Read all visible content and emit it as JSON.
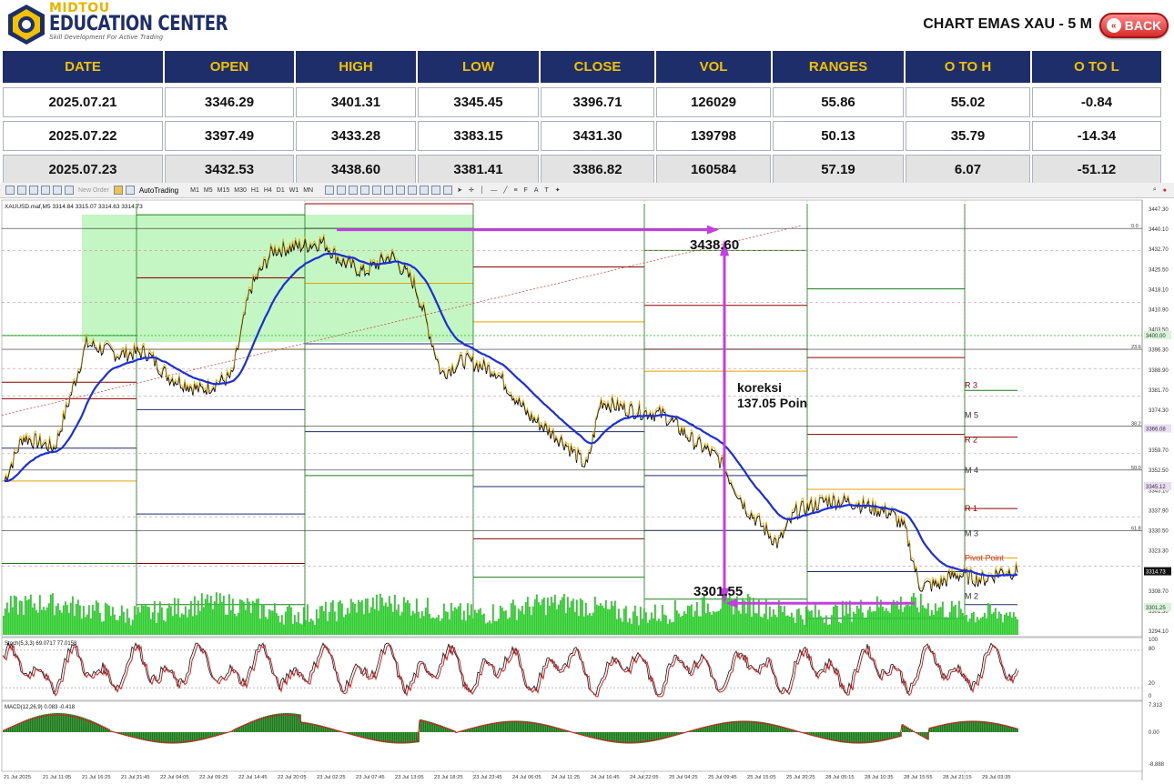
{
  "header": {
    "brand_top": "MIDTOU",
    "brand_main": "EDUCATION CENTER",
    "brand_tag": "Skill Development For Active Trading",
    "title": "CHART EMAS XAU - 5 M",
    "back_label": "BACK"
  },
  "table": {
    "columns": [
      "DATE",
      "OPEN",
      "HIGH",
      "LOW",
      "CLOSE",
      "VOL",
      "RANGES",
      "O TO H",
      "O TO L"
    ],
    "rows": [
      [
        "2025.07.21",
        "3346.29",
        "3401.31",
        "3345.45",
        "3396.71",
        "126029",
        "55.86",
        "55.02",
        "-0.84"
      ],
      [
        "2025.07.22",
        "3397.49",
        "3433.28",
        "3383.15",
        "3431.30",
        "139798",
        "50.13",
        "35.79",
        "-14.34"
      ],
      [
        "2025.07.23",
        "3432.53",
        "3438.60",
        "3381.41",
        "3386.82",
        "160584",
        "57.19",
        "6.07",
        "-51.12"
      ]
    ]
  },
  "toolbar": {
    "new_order": "New Order",
    "autotrading": "AutoTrading",
    "timeframes": [
      "M1",
      "M5",
      "M15",
      "M30",
      "H1",
      "H4",
      "D1",
      "W1",
      "MN"
    ]
  },
  "chart": {
    "symbol_info": "XAUUSD.maf,M5  3314.84 3315.07 3314.63 3314.73",
    "stoch_label": "Stoch(5,3,3) 69.0717 77.0158",
    "macd_label": "MACD(12,26,9) 0.083 -0.418",
    "annotation_high": "3438.60",
    "annotation_low": "3301.55",
    "annotation_text_1": "koreksi",
    "annotation_text_2": "137.05 Poin",
    "pivot_labels": [
      "R 3",
      "M 5",
      "R 2",
      "M 4",
      "R 1",
      "M 3",
      "Pivot Point",
      "M 2"
    ],
    "fib_labels": [
      "0.0",
      "23.6",
      "38.2",
      "50.0",
      "61.8"
    ],
    "price_ticks": [
      "3447.30",
      "3440.10",
      "3432.70",
      "3425.50",
      "3418.10",
      "3410.90",
      "3403.50",
      "3396.30",
      "3388.90",
      "3381.70",
      "3374.30",
      "3367.10",
      "3359.70",
      "3352.50",
      "3345.10",
      "3337.90",
      "3330.50",
      "3323.30",
      "3315.90",
      "3308.70",
      "3301.30",
      "3294.10"
    ],
    "price_tags": [
      "3400.00",
      "3366.08",
      "3345.12",
      "3314.73",
      "3301.25"
    ],
    "stoch_ticks": [
      "100",
      "80",
      "20",
      "0"
    ],
    "macd_ticks": [
      "7.313",
      "0.00",
      "-8.888"
    ],
    "time_labels": [
      "21 Jul 2025",
      "21 Jul 11:05",
      "21 Jul 16:25",
      "21 Jul 21:45",
      "22 Jul 04:05",
      "22 Jul 09:25",
      "22 Jul 14:45",
      "22 Jul 20:05",
      "23 Jul 02:25",
      "23 Jul 07:45",
      "23 Jul 13:05",
      "23 Jul 18:25",
      "23 Jul 23:45",
      "24 Jul 06:05",
      "24 Jul 11:25",
      "24 Jul 16:45",
      "24 Jul 22:05",
      "25 Jul 04:25",
      "25 Jul 09:45",
      "25 Jul 15:05",
      "25 Jul 20:25",
      "28 Jul 05:15",
      "28 Jul 10:35",
      "28 Jul 15:55",
      "28 Jul 21:15",
      "29 Jul 03:35"
    ]
  },
  "colors": {
    "navy": "#1d2e6b",
    "gold": "#f2c200",
    "magenta": "#c23fe0",
    "ema": "#1a2fd6",
    "volume": "#2ecc2e",
    "zone": "#b9f5b9"
  }
}
